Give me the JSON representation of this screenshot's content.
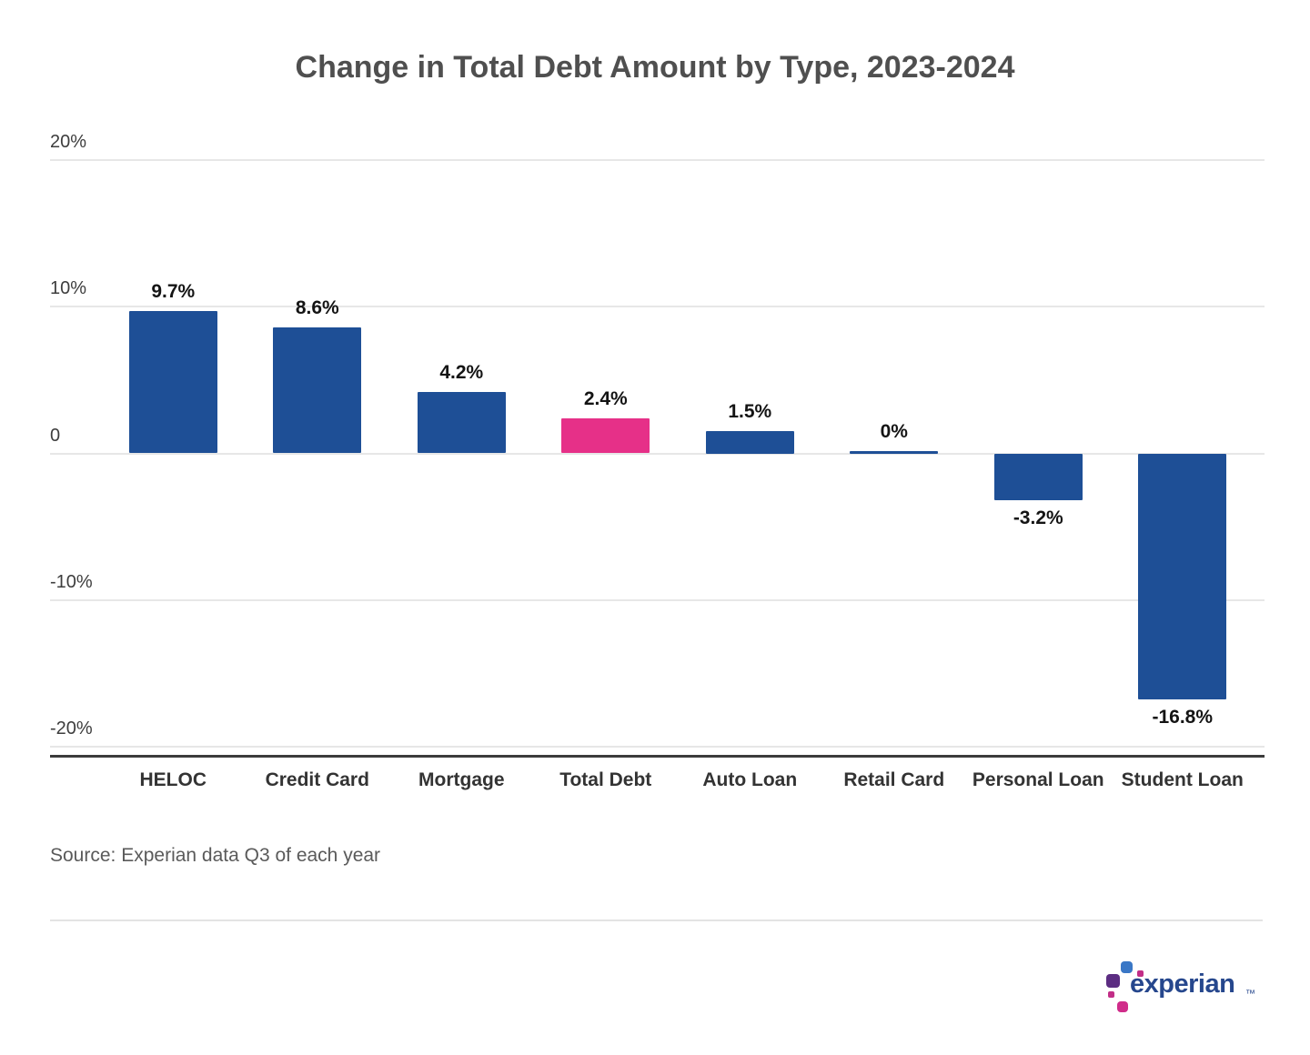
{
  "chart_data": {
    "type": "bar",
    "title": "Change in Total Debt Amount by Type, 2023-2024",
    "categories": [
      "HELOC",
      "Credit Card",
      "Mortgage",
      "Total Debt",
      "Auto Loan",
      "Retail Card",
      "Personal Loan",
      "Student Loan"
    ],
    "values": [
      9.7,
      8.6,
      4.2,
      2.4,
      1.5,
      0,
      -3.2,
      -16.8
    ],
    "value_labels": [
      "9.7%",
      "8.6%",
      "4.2%",
      "2.4%",
      "1.5%",
      "0%",
      "-3.2%",
      "-16.8%"
    ],
    "highlight_index": 3,
    "bar_color": "#1e4f96",
    "highlight_color": "#e63088",
    "xlabel": "",
    "ylabel": "",
    "ylim": [
      -20,
      20
    ],
    "y_ticks": [
      {
        "value": 20,
        "label": "20%"
      },
      {
        "value": 10,
        "label": "10%"
      },
      {
        "value": 0,
        "label": "0"
      },
      {
        "value": -10,
        "label": "-10%"
      },
      {
        "value": -20,
        "label": "-20%"
      }
    ],
    "grid": true,
    "legend": false
  },
  "source_note": "Source: Experian data Q3 of each year",
  "logo": {
    "wordmark": "experian",
    "trademark": "™",
    "wordmark_color": "#26478d",
    "square_colors": [
      "#3a77c6",
      "#c22e87",
      "#5c2d82",
      "#c22e87",
      "#d02c8a"
    ]
  }
}
